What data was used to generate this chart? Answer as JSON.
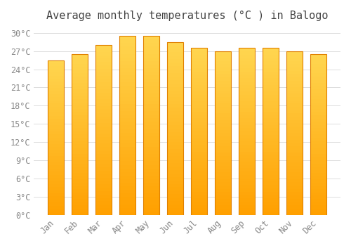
{
  "title": "Average monthly temperatures (°C ) in Balogo",
  "months": [
    "Jan",
    "Feb",
    "Mar",
    "Apr",
    "May",
    "Jun",
    "Jul",
    "Aug",
    "Sep",
    "Oct",
    "Nov",
    "Dec"
  ],
  "values": [
    25.5,
    26.5,
    28.0,
    29.5,
    29.5,
    28.5,
    27.5,
    27.0,
    27.5,
    27.5,
    27.0,
    26.5
  ],
  "bar_color_top": "#FFD54F",
  "bar_color_bottom": "#FFA000",
  "bar_edge_color": "#E08000",
  "background_color": "#FFFFFF",
  "grid_color": "#DDDDDD",
  "ylim": [
    0,
    31
  ],
  "yticks": [
    0,
    3,
    6,
    9,
    12,
    15,
    18,
    21,
    24,
    27,
    30
  ],
  "ytick_labels": [
    "0°C",
    "3°C",
    "6°C",
    "9°C",
    "12°C",
    "15°C",
    "18°C",
    "21°C",
    "24°C",
    "27°C",
    "30°C"
  ],
  "title_fontsize": 11,
  "tick_fontsize": 8.5,
  "bar_width": 0.68,
  "gradient_steps": 50
}
